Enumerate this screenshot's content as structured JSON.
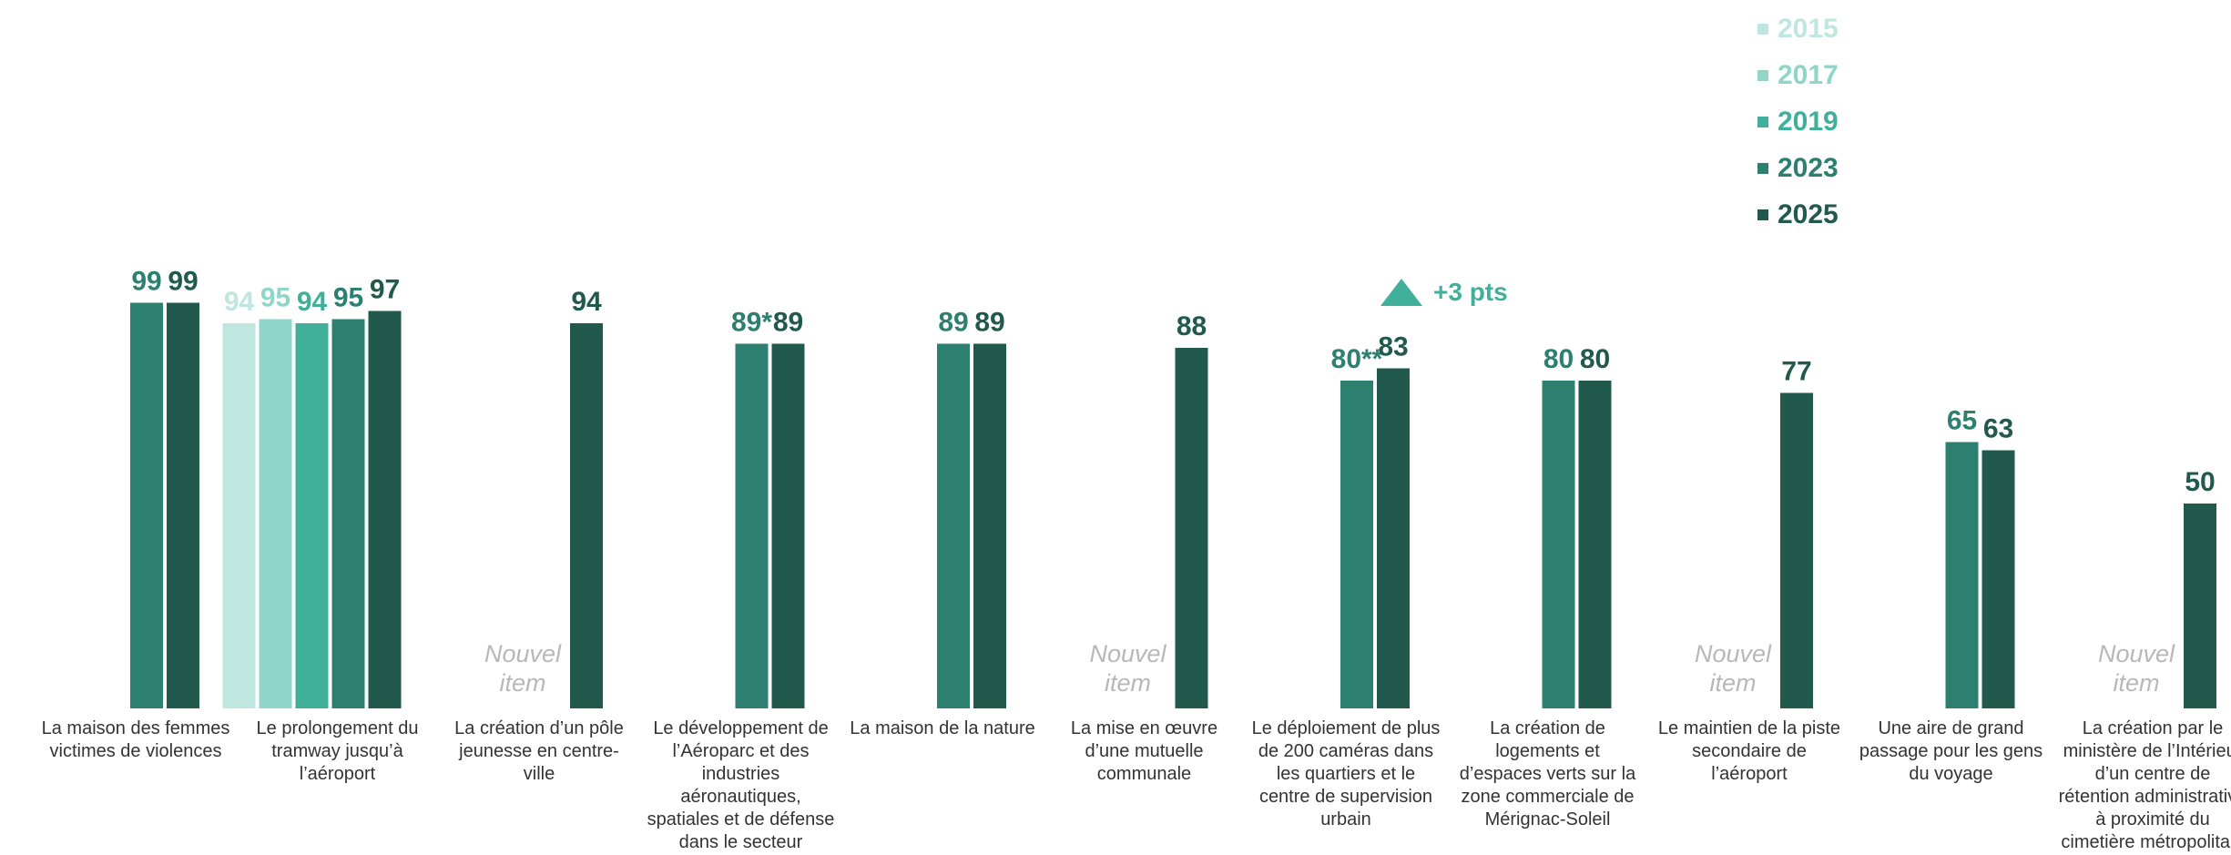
{
  "chart_data": {
    "type": "bar",
    "ylim": [
      0,
      100
    ],
    "grid": false,
    "legend_position": "top-right",
    "series": [
      {
        "name": "2015",
        "color": "#bfe6df"
      },
      {
        "name": "2017",
        "color": "#8fd6c8"
      },
      {
        "name": "2019",
        "color": "#40b09a"
      },
      {
        "name": "2023",
        "color": "#2d8070"
      },
      {
        "name": "2025",
        "color": "#21594d"
      }
    ],
    "categories": [
      {
        "label": [
          "La maison des femmes",
          "victimes de violences"
        ],
        "bars": [
          {
            "series": "2023",
            "value": 99,
            "label": "99"
          },
          {
            "series": "2025",
            "value": 99,
            "label": "99"
          }
        ]
      },
      {
        "label": [
          "Le prolongement du",
          "tramway jusqu’à",
          "l’aéroport"
        ],
        "bars": [
          {
            "series": "2015",
            "value": 94,
            "label": "94"
          },
          {
            "series": "2017",
            "value": 95,
            "label": "95"
          },
          {
            "series": "2019",
            "value": 94,
            "label": "94"
          },
          {
            "series": "2023",
            "value": 95,
            "label": "95"
          },
          {
            "series": "2025",
            "value": 97,
            "label": "97"
          }
        ]
      },
      {
        "label": [
          "La création d’un pôle",
          "jeunesse en centre-",
          "ville"
        ],
        "new_item": [
          "Nouvel",
          "item"
        ],
        "bars": [
          {
            "series": "2025",
            "value": 94,
            "label": "94"
          }
        ]
      },
      {
        "label": [
          "Le développement de",
          "l’Aéroparc et des",
          "industries",
          "aéronautiques,",
          "spatiales et de défense",
          "dans le secteur"
        ],
        "bars": [
          {
            "series": "2023",
            "value": 89,
            "label": "89*"
          },
          {
            "series": "2025",
            "value": 89,
            "label": "89"
          }
        ]
      },
      {
        "label": [
          "La maison de la nature"
        ],
        "bars": [
          {
            "series": "2023",
            "value": 89,
            "label": "89"
          },
          {
            "series": "2025",
            "value": 89,
            "label": "89"
          }
        ]
      },
      {
        "label": [
          "La mise en œuvre",
          "d’une mutuelle",
          "communale"
        ],
        "new_item": [
          "Nouvel",
          "item"
        ],
        "bars": [
          {
            "series": "2025",
            "value": 88,
            "label": "88"
          }
        ]
      },
      {
        "label": [
          "Le déploiement de plus",
          "de 200 caméras dans",
          "les quartiers et le",
          "centre de supervision",
          "urbain"
        ],
        "bars": [
          {
            "series": "2023",
            "value": 80,
            "label": "80**"
          },
          {
            "series": "2025",
            "value": 83,
            "label": "83"
          }
        ]
      },
      {
        "label": [
          "La création de",
          "logements et",
          "d’espaces verts sur la",
          "zone commerciale de",
          "Mérignac-Soleil"
        ],
        "bars": [
          {
            "series": "2023",
            "value": 80,
            "label": "80"
          },
          {
            "series": "2025",
            "value": 80,
            "label": "80"
          }
        ]
      },
      {
        "label": [
          "Le maintien de la piste",
          "secondaire de",
          "l’aéroport"
        ],
        "new_item": [
          "Nouvel",
          "item"
        ],
        "bars": [
          {
            "series": "2025",
            "value": 77,
            "label": "77"
          }
        ]
      },
      {
        "label": [
          "Une aire de grand",
          "passage pour les gens",
          "du voyage"
        ],
        "bars": [
          {
            "series": "2023",
            "value": 65,
            "label": "65"
          },
          {
            "series": "2025",
            "value": 63,
            "label": "63"
          }
        ]
      },
      {
        "label": [
          "La création par le",
          "ministère de l’Intérieur",
          "d’un centre de",
          "rétention administrative",
          "à proximité du",
          "cimetière métropolitain"
        ],
        "new_item": [
          "Nouvel",
          "item"
        ],
        "bars": [
          {
            "series": "2025",
            "value": 50,
            "label": "50"
          }
        ]
      }
    ],
    "annotations": [
      {
        "text": "+3 pts",
        "icon": "triangle-up-icon",
        "color": "#40b09a"
      }
    ]
  }
}
